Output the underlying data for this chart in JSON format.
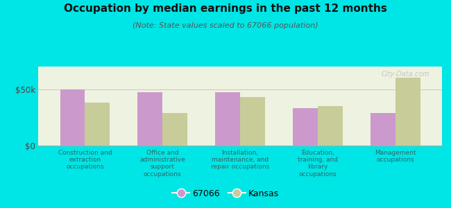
{
  "title": "Occupation by median earnings in the past 12 months",
  "subtitle": "(Note: State values scaled to 67066 population)",
  "categories": [
    "Construction and\nextraction\noccupations",
    "Office and\nadministrative\nsupport\noccupations",
    "Installation,\nmaintenance, and\nrepair occupations",
    "Education,\ntraining, and\nlibrary\noccupations",
    "Management\noccupations"
  ],
  "values_67066": [
    50000,
    47000,
    47500,
    33000,
    29000
  ],
  "values_kansas": [
    38000,
    29000,
    43000,
    35000,
    60000
  ],
  "color_67066": "#cc99cc",
  "color_kansas": "#c8cc99",
  "background_outer": "#00e5e5",
  "background_chart": "#eef2e0",
  "ylim": [
    0,
    70000
  ],
  "yticks": [
    0,
    50000
  ],
  "ytick_labels": [
    "$0",
    "$50k"
  ],
  "legend_label_67066": "67066",
  "legend_label_kansas": "Kansas",
  "watermark": "City-Data.com",
  "bar_width": 0.32
}
